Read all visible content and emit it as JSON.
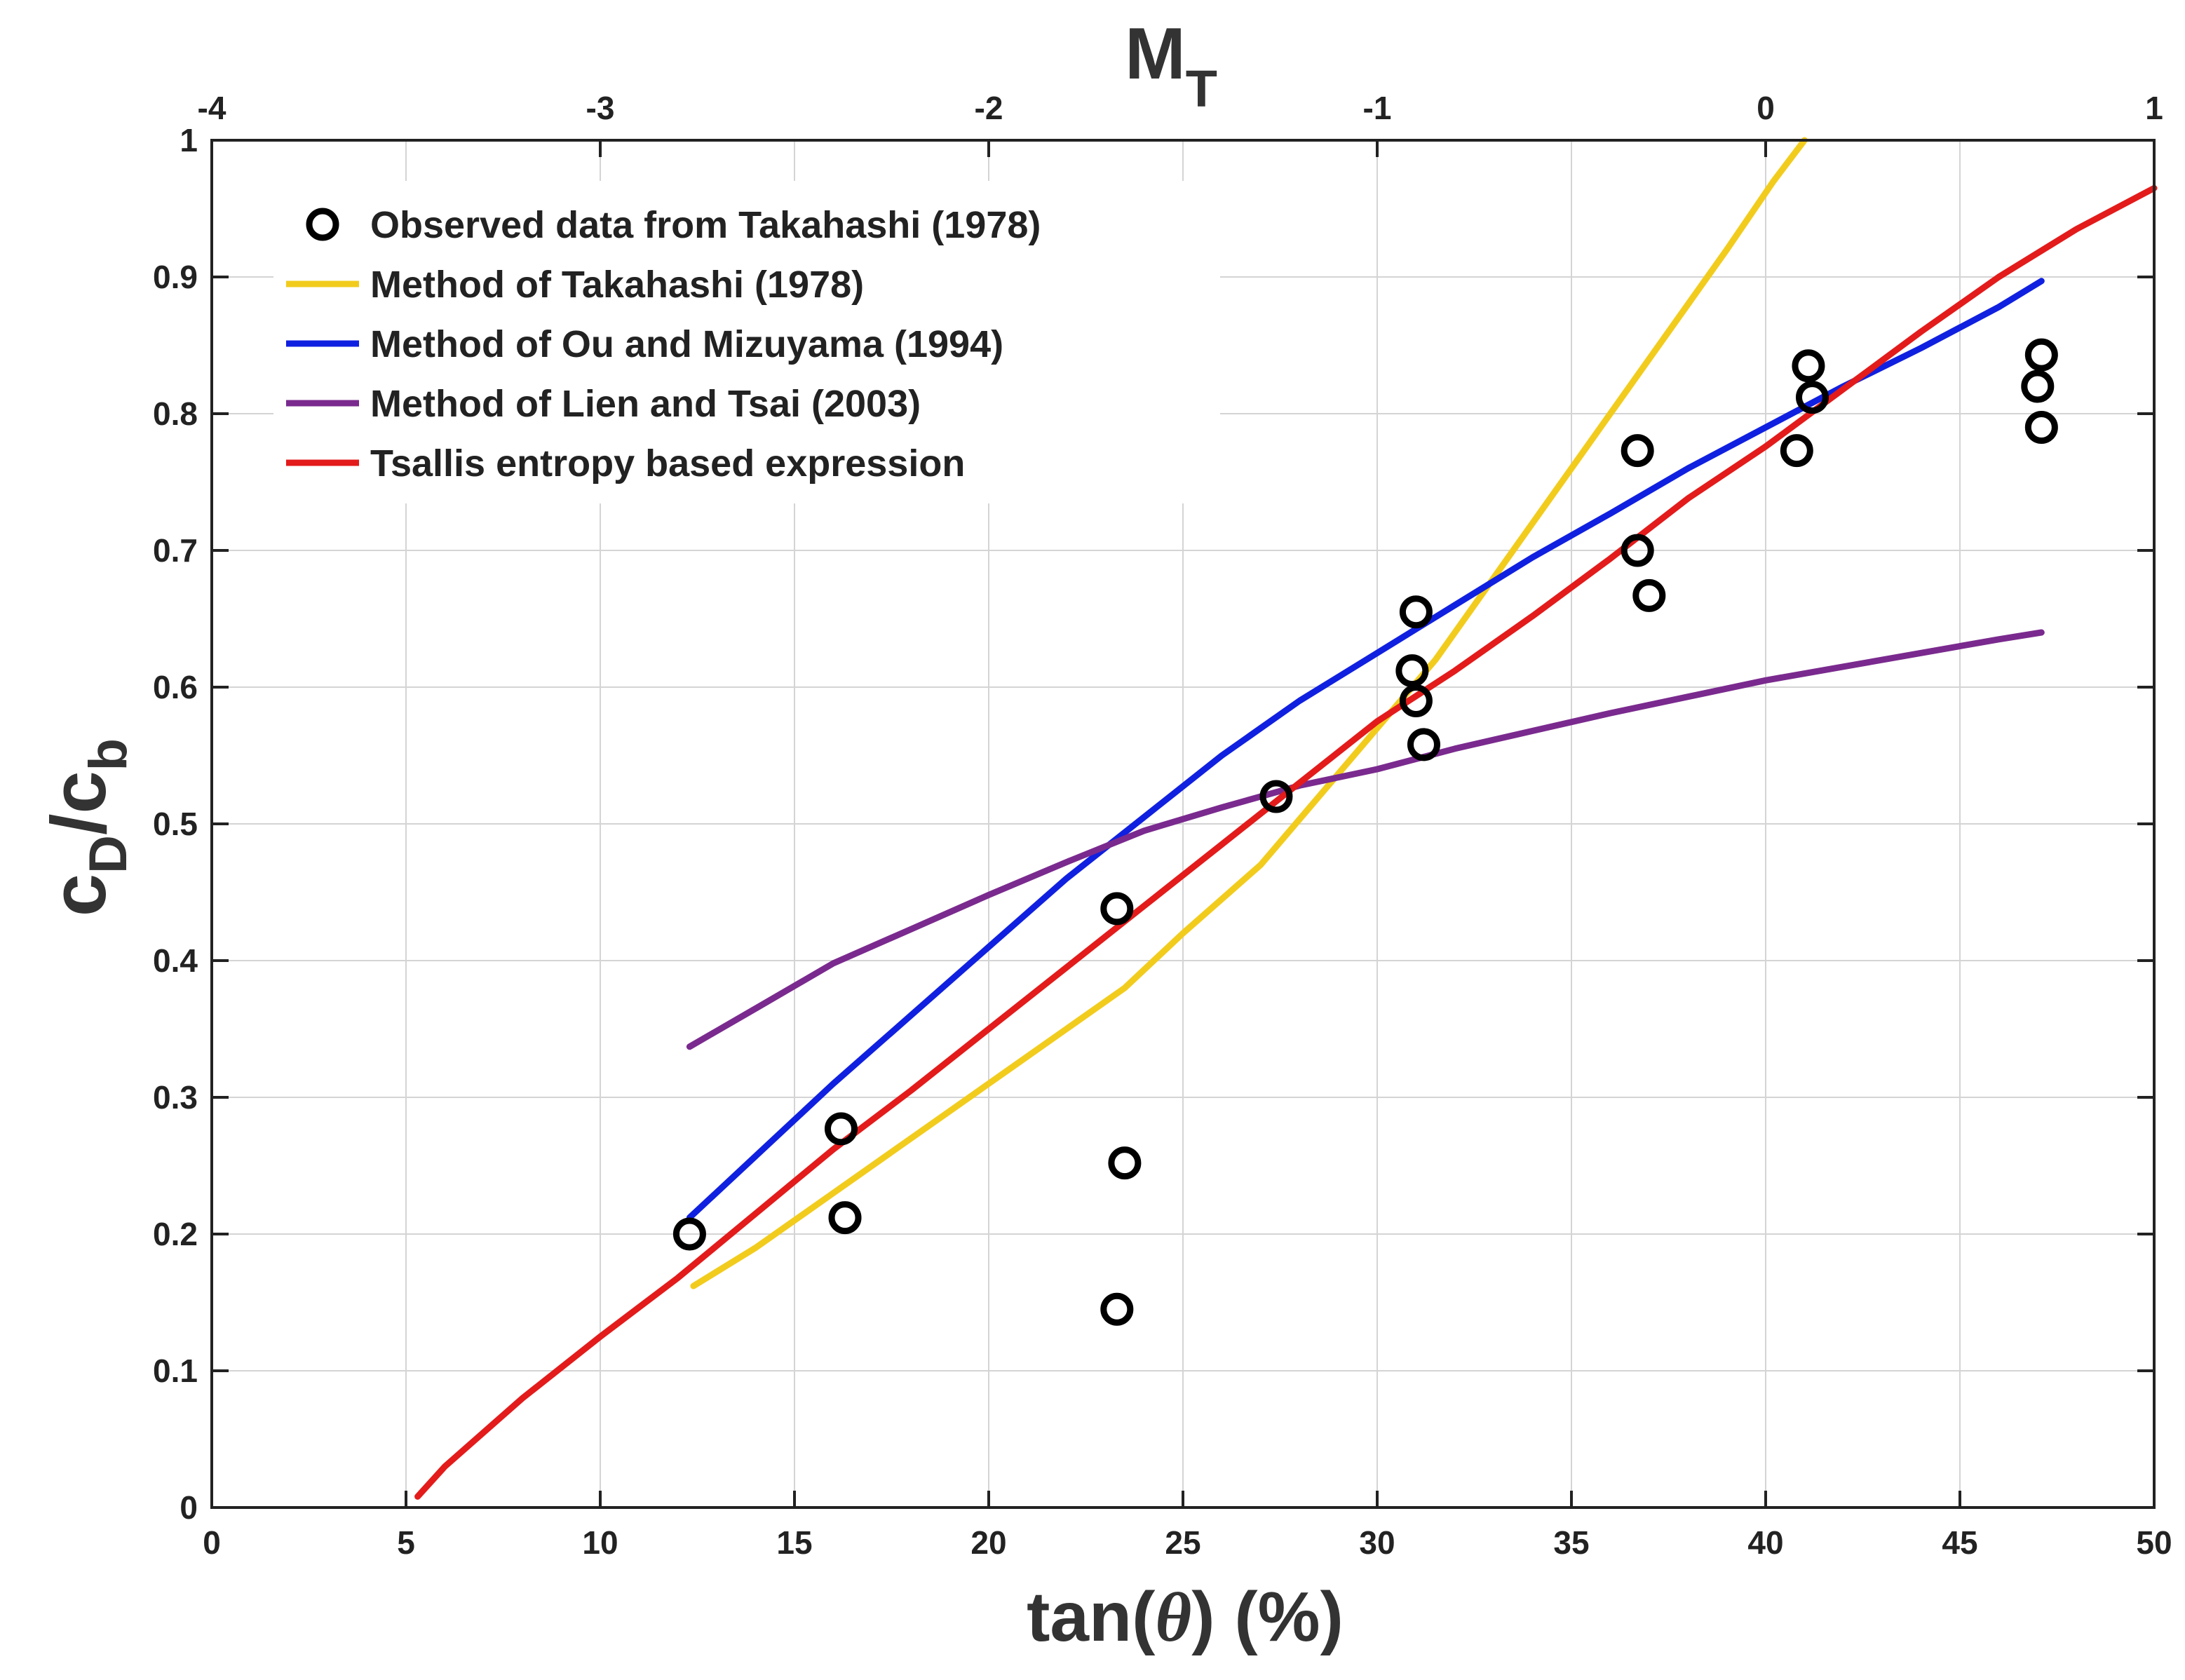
{
  "chart_data": {
    "type": "line",
    "title": "",
    "xlabel_parts": [
      "tan(",
      "θ",
      ") (%)"
    ],
    "ylabel": {
      "main1": "c",
      "sub1": "D",
      "slash": "/",
      "main2": "c",
      "sub2": "b"
    },
    "top_axis_label": {
      "main": "M",
      "sub": "T"
    },
    "xlim": [
      0,
      50
    ],
    "ylim": [
      0,
      1
    ],
    "x_ticks": [
      0,
      5,
      10,
      15,
      20,
      25,
      30,
      35,
      40,
      45,
      50
    ],
    "x_tick_labels": [
      "0",
      "5",
      "10",
      "15",
      "20",
      "25",
      "30",
      "35",
      "40",
      "45",
      "50"
    ],
    "y_ticks": [
      0,
      0.1,
      0.2,
      0.3,
      0.4,
      0.5,
      0.6,
      0.7,
      0.8,
      0.9,
      1
    ],
    "y_tick_labels": [
      "0",
      "0.1",
      "0.2",
      "0.3",
      "0.4",
      "0.5",
      "0.6",
      "0.7",
      "0.8",
      "0.9",
      "1"
    ],
    "top_axis": {
      "lim": [
        -4,
        1
      ],
      "ticks": [
        -4,
        -3,
        -2,
        -1,
        0,
        1
      ],
      "tick_labels": [
        "-4",
        "-3",
        "-2",
        "-1",
        "0",
        "1"
      ]
    },
    "grid": true,
    "legend_position": "top-left",
    "legend_entries": [
      "Observed data from Takahashi (1978)",
      "Method of Takahashi (1978)",
      "Method of Ou and Mizuyama (1994)",
      "Method of Lien and Tsai (2003)",
      "Tsallis entropy based expression"
    ],
    "observed": {
      "name": "Observed data from Takahashi (1978)",
      "marker": "circle",
      "color": "#000000",
      "points": [
        [
          12.3,
          0.2
        ],
        [
          16.2,
          0.277
        ],
        [
          16.3,
          0.212
        ],
        [
          23.3,
          0.438
        ],
        [
          23.5,
          0.252
        ],
        [
          23.3,
          0.145
        ],
        [
          27.4,
          0.52
        ],
        [
          31.0,
          0.655
        ],
        [
          30.9,
          0.612
        ],
        [
          31.0,
          0.59
        ],
        [
          31.2,
          0.558
        ],
        [
          36.7,
          0.773
        ],
        [
          36.7,
          0.7
        ],
        [
          37.0,
          0.667
        ],
        [
          41.1,
          0.835
        ],
        [
          41.2,
          0.812
        ],
        [
          40.8,
          0.773
        ],
        [
          47.1,
          0.843
        ],
        [
          47.0,
          0.82
        ],
        [
          47.1,
          0.79
        ]
      ]
    },
    "series": [
      {
        "name": "Method of Takahashi (1978)",
        "color": "#f2cc1d",
        "x": [
          12.4,
          14,
          16,
          18,
          20,
          22,
          23.5,
          25,
          27,
          28.5,
          30,
          31.5,
          33,
          34.5,
          36,
          37.5,
          39,
          40.2,
          41
        ],
        "y": [
          0.162,
          0.19,
          0.23,
          0.27,
          0.31,
          0.35,
          0.38,
          0.42,
          0.47,
          0.52,
          0.57,
          0.62,
          0.68,
          0.74,
          0.8,
          0.86,
          0.92,
          0.97,
          1.0
        ]
      },
      {
        "name": "Method of Ou and Mizuyama (1994)",
        "color": "#1020e0",
        "x": [
          12.3,
          14,
          16,
          18,
          20,
          22,
          24,
          26,
          28,
          30,
          32,
          34,
          36,
          38,
          40,
          42,
          44,
          46,
          47.1
        ],
        "y": [
          0.212,
          0.257,
          0.31,
          0.36,
          0.41,
          0.46,
          0.505,
          0.55,
          0.59,
          0.625,
          0.66,
          0.695,
          0.727,
          0.76,
          0.79,
          0.82,
          0.848,
          0.878,
          0.897
        ]
      },
      {
        "name": "Method of Lien and Tsai (2003)",
        "color": "#7a2a8e",
        "x": [
          12.3,
          14,
          16,
          18,
          20,
          22,
          24,
          26,
          28,
          30,
          32,
          34,
          36,
          38,
          40,
          42,
          44,
          46,
          47.1
        ],
        "y": [
          0.337,
          0.365,
          0.398,
          0.423,
          0.448,
          0.472,
          0.495,
          0.512,
          0.528,
          0.54,
          0.555,
          0.568,
          0.581,
          0.593,
          0.605,
          0.615,
          0.625,
          0.635,
          0.64
        ]
      },
      {
        "name": "Tsallis entropy based expression",
        "color": "#e31b1b",
        "x": [
          5.3,
          6,
          8,
          10,
          12,
          14,
          16,
          18,
          20,
          22,
          24,
          26,
          28,
          30,
          32,
          34,
          36,
          38,
          40,
          42,
          44,
          46,
          48,
          50
        ],
        "y": [
          0.008,
          0.03,
          0.08,
          0.125,
          0.168,
          0.215,
          0.262,
          0.305,
          0.35,
          0.395,
          0.44,
          0.485,
          0.53,
          0.575,
          0.612,
          0.652,
          0.694,
          0.738,
          0.776,
          0.818,
          0.86,
          0.9,
          0.935,
          0.965
        ]
      }
    ]
  }
}
